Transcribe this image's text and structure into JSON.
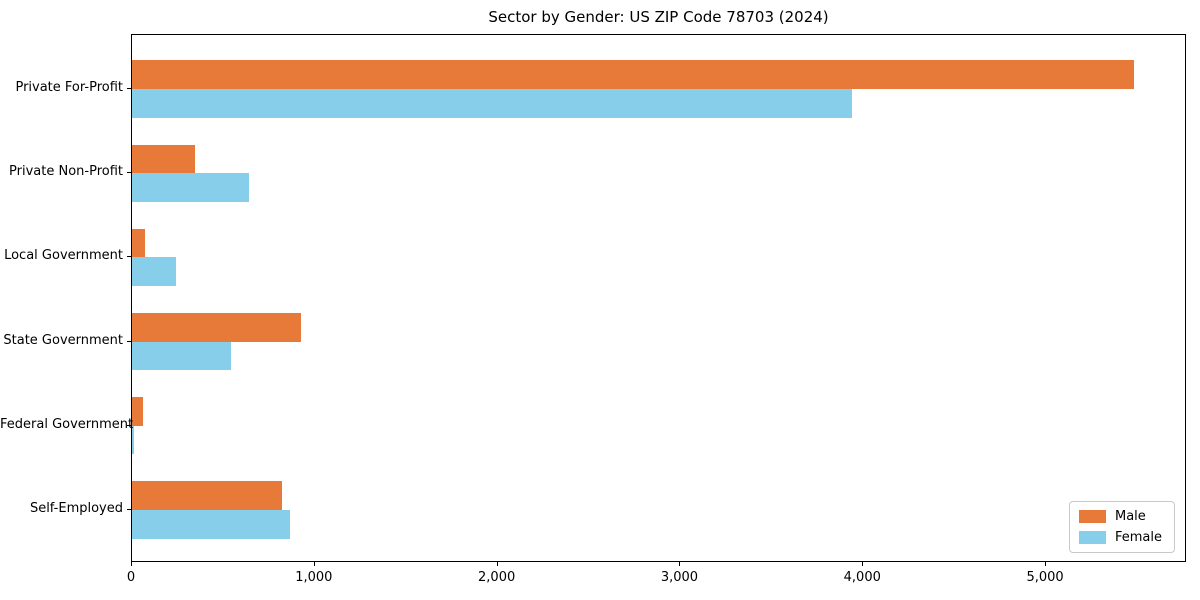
{
  "chart_data": {
    "type": "bar",
    "orientation": "horizontal",
    "title": "Sector by Gender: US ZIP Code 78703 (2024)",
    "xlabel": "",
    "ylabel": "",
    "categories": [
      "Private For-Profit",
      "Private Non-Profit",
      "Local Government",
      "State Government",
      "Federal Government",
      "Self-Employed"
    ],
    "series": [
      {
        "name": "Male",
        "color": "#e87a39",
        "values": [
          5480,
          345,
          73,
          922,
          62,
          818
        ]
      },
      {
        "name": "Female",
        "color": "#87ceeb",
        "values": [
          3940,
          640,
          242,
          540,
          13,
          865
        ]
      }
    ],
    "xlim": [
      0,
      5760
    ],
    "xticks": [
      {
        "value": 0,
        "label": "0"
      },
      {
        "value": 1000,
        "label": "1,000"
      },
      {
        "value": 2000,
        "label": "2,000"
      },
      {
        "value": 3000,
        "label": "3,000"
      },
      {
        "value": 4000,
        "label": "4,000"
      },
      {
        "value": 5000,
        "label": "5,000"
      }
    ],
    "grid": false,
    "legend_position": "lower right"
  }
}
